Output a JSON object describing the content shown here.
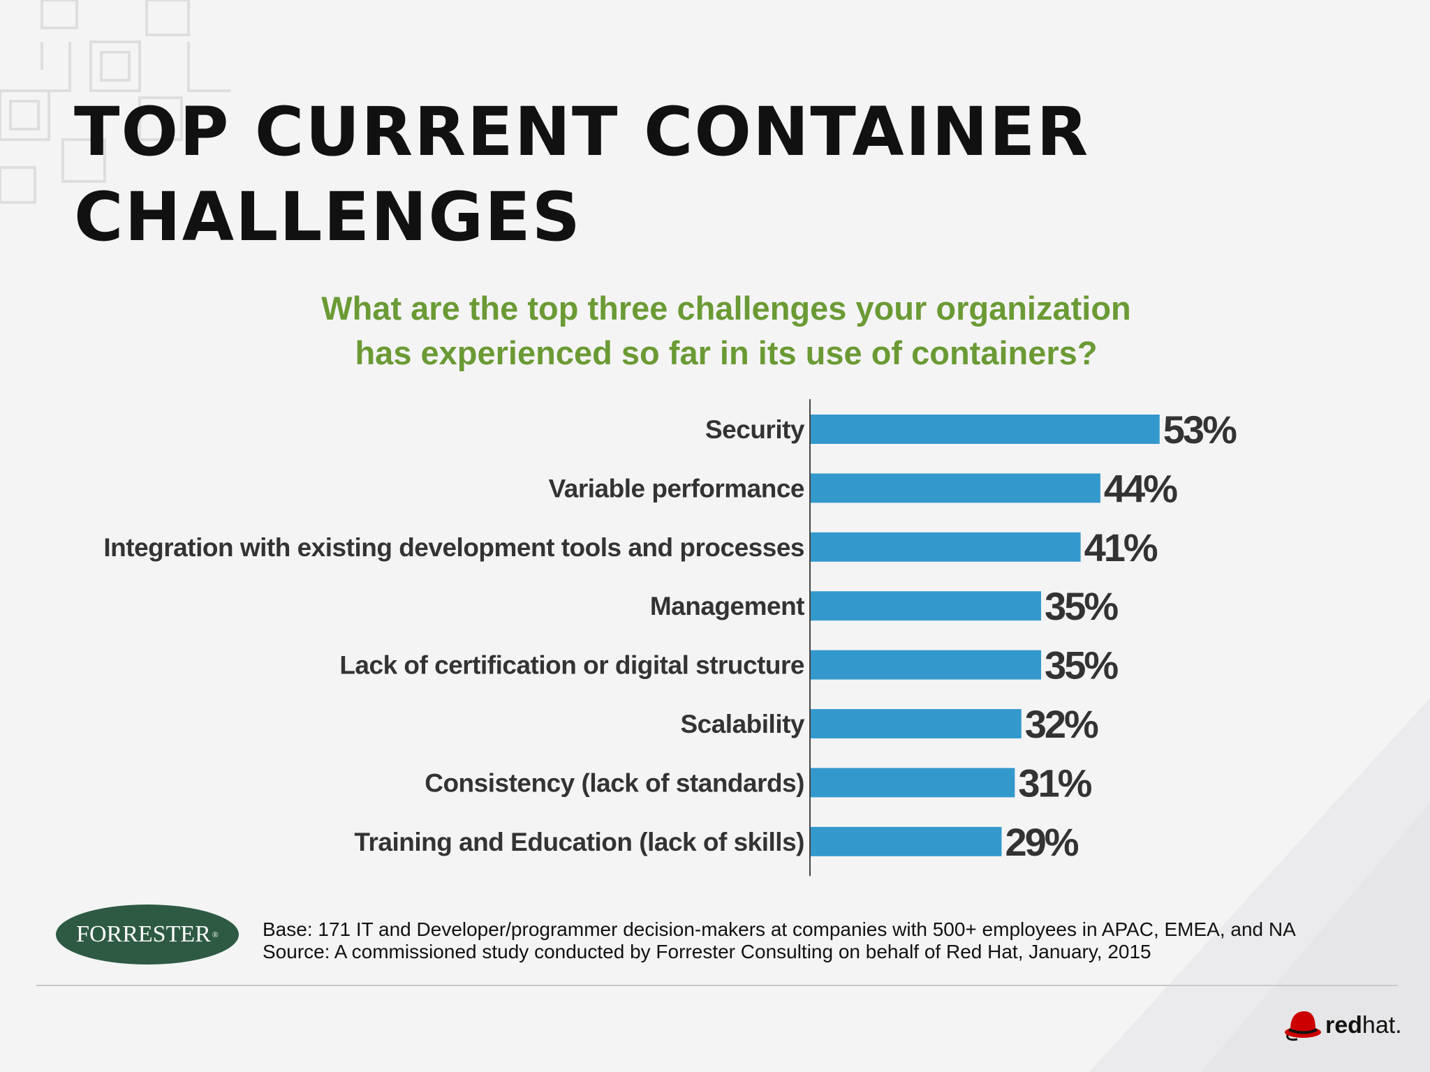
{
  "slide": {
    "title": "TOP CURRENT CONTAINER\nCHALLENGES",
    "question": "What are the top three challenges your organization\nhas experienced so far in its use of containers?"
  },
  "chart_data": {
    "type": "bar",
    "orientation": "horizontal",
    "categories": [
      "Security",
      "Variable performance",
      "Integration with existing development tools and processes",
      "Management",
      "Lack of certification or digital structure",
      "Scalability",
      "Consistency (lack of standards)",
      "Training and Education (lack of skills)"
    ],
    "values": [
      53,
      44,
      41,
      35,
      35,
      32,
      31,
      29
    ],
    "value_labels": [
      "53%",
      "44%",
      "41%",
      "35%",
      "35%",
      "32%",
      "31%",
      "29%"
    ],
    "bar_color": "#3399cc",
    "xlim": [
      0,
      100
    ],
    "grid": false,
    "legend": false
  },
  "footer": {
    "forrester_logo": "FORRESTER",
    "base_note": "Base: 171 IT and Developer/programmer decision-makers at companies with 500+ employees in APAC, EMEA, and NA",
    "source_note": "Source: A commissioned study conducted by Forrester Consulting on behalf of Red Hat, January, 2015",
    "redhat_bold": "red",
    "redhat_light": "hat."
  },
  "colors": {
    "question": "#6b9a34",
    "bar": "#3399cc",
    "forrester_green": "#2e5a43",
    "redhat_red": "#cc0000"
  }
}
